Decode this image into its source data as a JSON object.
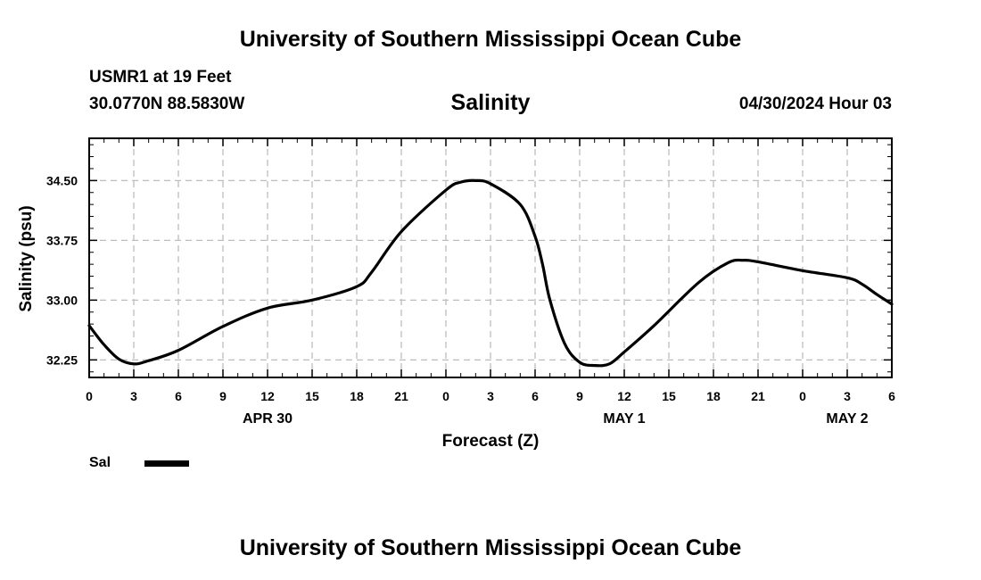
{
  "header": {
    "top_title": "University of Southern Mississippi Ocean Cube",
    "station": "USMR1 at 19 Feet",
    "coords": "30.0770N  88.5830W",
    "date": "04/30/2024 Hour 03",
    "bottom_title": "University of Southern Mississippi Ocean Cube"
  },
  "legend": {
    "label": "Sal",
    "color": "#000000"
  },
  "chart_data": {
    "type": "line",
    "title": "Salinity",
    "xlabel": "Forecast (Z)",
    "ylabel": "Salinity (psu)",
    "xlim": [
      0,
      54
    ],
    "ylim": [
      32.03,
      35.03
    ],
    "x_ticks": [
      0,
      3,
      6,
      9,
      12,
      15,
      18,
      21,
      24,
      27,
      30,
      33,
      36,
      39,
      42,
      45,
      48,
      51,
      54
    ],
    "x_tick_labels": [
      "0",
      "3",
      "6",
      "9",
      "12",
      "15",
      "18",
      "21",
      "0",
      "3",
      "6",
      "9",
      "12",
      "15",
      "18",
      "21",
      "0",
      "3",
      "6"
    ],
    "day_labels": [
      {
        "x": 12,
        "label": "APR 30"
      },
      {
        "x": 36,
        "label": "MAY 1"
      },
      {
        "x": 51,
        "label": "MAY 2"
      }
    ],
    "y_ticks": [
      32.25,
      33.0,
      33.75,
      34.5
    ],
    "y_tick_labels": [
      "32.25",
      "33.00",
      "33.75",
      "34.50"
    ],
    "grid": true,
    "series": [
      {
        "name": "Sal",
        "x": [
          0,
          1,
          2,
          3,
          4,
          6,
          9,
          12,
          15,
          18,
          19,
          21,
          24,
          25,
          26,
          27,
          29,
          30,
          30.5,
          31,
          32,
          33,
          34,
          35,
          36,
          38,
          41,
          43,
          44,
          45,
          48,
          51,
          52,
          53,
          54
        ],
        "y": [
          32.68,
          32.44,
          32.26,
          32.2,
          32.24,
          32.37,
          32.67,
          32.9,
          33.0,
          33.17,
          33.35,
          33.86,
          34.38,
          34.48,
          34.5,
          34.46,
          34.2,
          33.8,
          33.45,
          33.0,
          32.45,
          32.22,
          32.18,
          32.2,
          32.35,
          32.68,
          33.22,
          33.47,
          33.5,
          33.48,
          33.37,
          33.28,
          33.2,
          33.07,
          32.95
        ]
      }
    ]
  }
}
